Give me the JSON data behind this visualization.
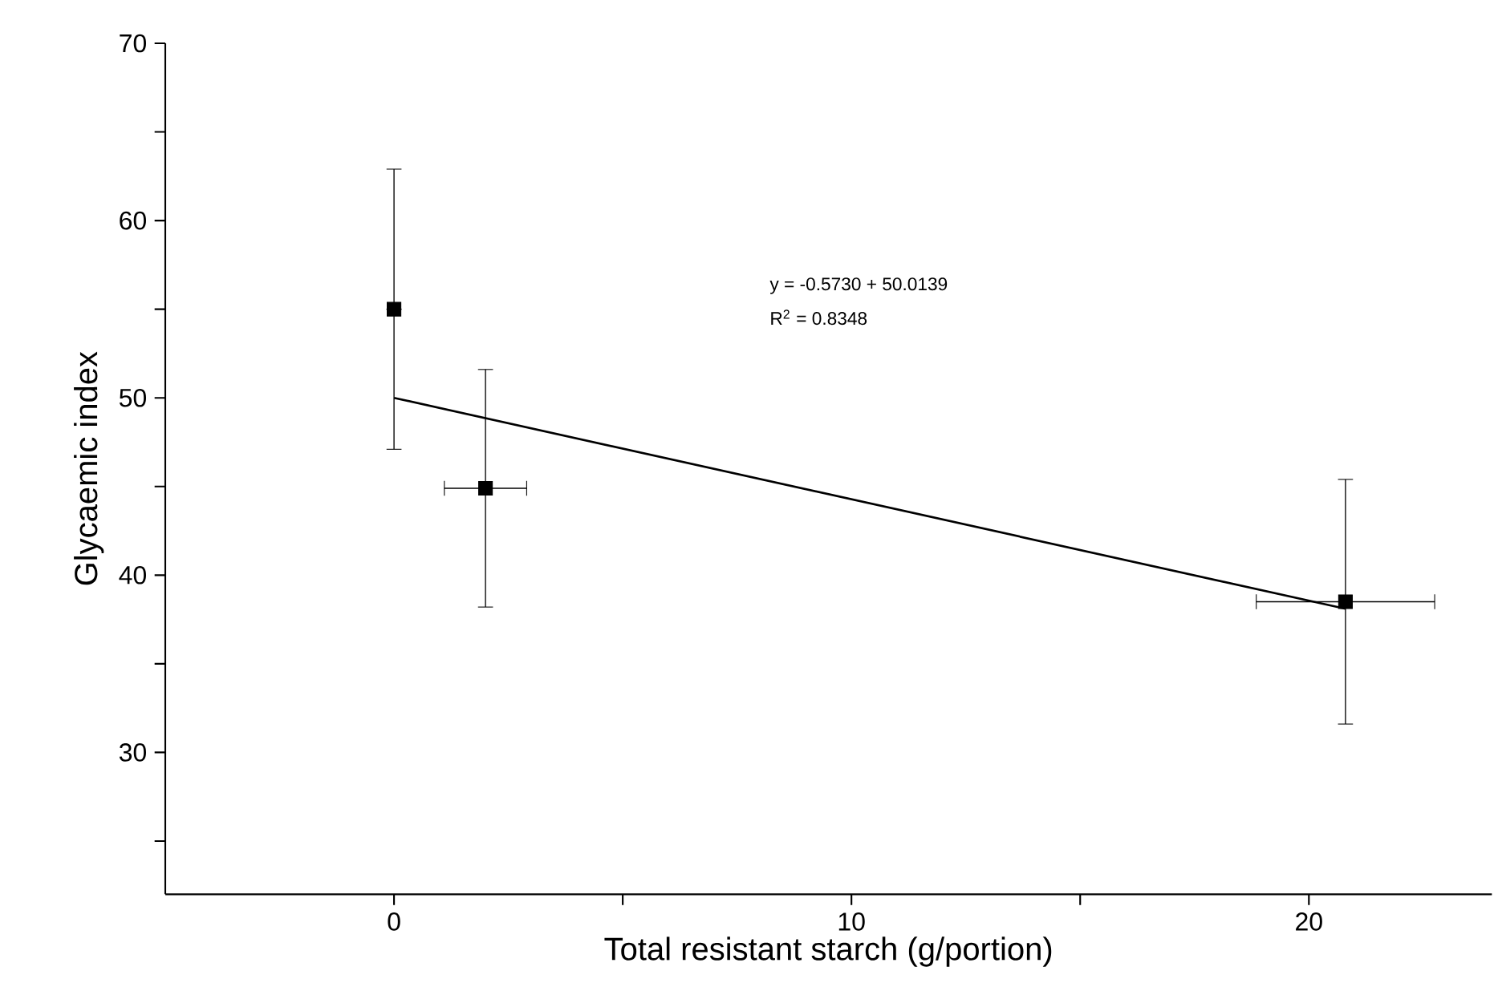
{
  "chart_data": {
    "type": "scatter",
    "xlabel": "Total resistant starch (g/portion)",
    "ylabel": "Glycaemic index",
    "xlim": [
      -5,
      24
    ],
    "ylim": [
      22,
      70
    ],
    "xticks": [
      0,
      {
        "value": 5,
        "label": null
      },
      10,
      {
        "value": 15,
        "label": null
      },
      20
    ],
    "yticks": [
      {
        "value": 25,
        "label": null
      },
      30,
      {
        "value": 35,
        "label": null
      },
      40,
      {
        "value": 45,
        "label": null
      },
      50,
      {
        "value": 55,
        "label": null
      },
      60,
      {
        "value": 65,
        "label": null
      },
      70
    ],
    "grid": false,
    "annotations": [
      "y = -0.5730 + 50.0139",
      "R$^{2}$ = 0.8348"
    ],
    "series": [
      {
        "marker": "square",
        "color": "#000000",
        "x": [
          0,
          2,
          20.8
        ],
        "values": [
          55,
          44.9,
          38.5
        ],
        "errors": [
          7.9,
          6.7,
          6.9
        ],
        "xerrors": [
          null,
          0.9,
          1.95
        ]
      },
      {
        "type": "line",
        "marker": "none",
        "color": "#000000",
        "x": [
          0,
          20.8
        ],
        "values": [
          50.0,
          38.1
        ]
      }
    ]
  }
}
